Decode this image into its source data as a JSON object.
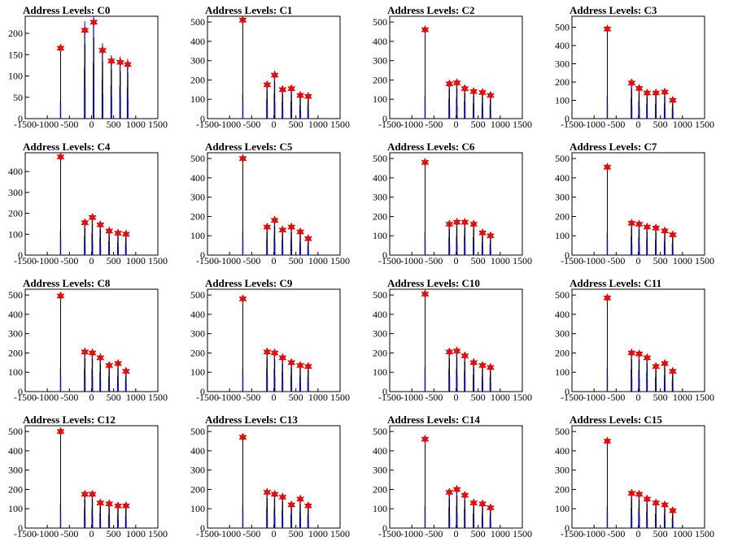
{
  "chart_data": {
    "type": "histogram_grid",
    "x_ticks": [
      -1500,
      -1000,
      -500,
      0,
      500,
      1000,
      1500
    ],
    "x_tick_labels": [
      "-1500",
      "-1000",
      "-500",
      "0",
      "500",
      "1000",
      "1500"
    ],
    "xlim": [
      -1500,
      1500
    ],
    "panels": [
      {
        "title": "Address Levels: C0",
        "ylim": [
          0,
          240
        ],
        "y_ticks": [
          0,
          50,
          100,
          150,
          200
        ],
        "y_tick_labels": [
          "0",
          "50",
          "100",
          "150",
          "200"
        ],
        "peaks": [
          {
            "x": -700,
            "y": 165
          },
          {
            "x": -150,
            "y": 207
          },
          {
            "x": 50,
            "y": 226
          },
          {
            "x": 250,
            "y": 160
          },
          {
            "x": 450,
            "y": 135
          },
          {
            "x": 650,
            "y": 132
          },
          {
            "x": 820,
            "y": 127
          }
        ]
      },
      {
        "title": "Address Levels: C1",
        "ylim": [
          0,
          530
        ],
        "y_ticks": [
          0,
          100,
          200,
          300,
          400,
          500
        ],
        "y_tick_labels": [
          "0",
          "100",
          "200",
          "300",
          "400",
          "500"
        ],
        "peaks": [
          {
            "x": -700,
            "y": 510
          },
          {
            "x": -150,
            "y": 175
          },
          {
            "x": 20,
            "y": 225
          },
          {
            "x": 200,
            "y": 150
          },
          {
            "x": 400,
            "y": 155
          },
          {
            "x": 600,
            "y": 120
          },
          {
            "x": 780,
            "y": 115
          }
        ]
      },
      {
        "title": "Address Levels: C2",
        "ylim": [
          0,
          530
        ],
        "y_ticks": [
          0,
          100,
          200,
          300,
          400,
          500
        ],
        "y_tick_labels": [
          "0",
          "100",
          "200",
          "300",
          "400",
          "500"
        ],
        "peaks": [
          {
            "x": -700,
            "y": 460
          },
          {
            "x": -150,
            "y": 180
          },
          {
            "x": 20,
            "y": 185
          },
          {
            "x": 200,
            "y": 155
          },
          {
            "x": 400,
            "y": 140
          },
          {
            "x": 600,
            "y": 135
          },
          {
            "x": 780,
            "y": 120
          }
        ]
      },
      {
        "title": "Address Levels: C3",
        "ylim": [
          0,
          560
        ],
        "y_ticks": [
          0,
          100,
          200,
          300,
          400,
          500
        ],
        "y_tick_labels": [
          "0",
          "100",
          "200",
          "300",
          "400",
          "500"
        ],
        "peaks": [
          {
            "x": -700,
            "y": 490
          },
          {
            "x": -150,
            "y": 195
          },
          {
            "x": 20,
            "y": 165
          },
          {
            "x": 200,
            "y": 140
          },
          {
            "x": 400,
            "y": 140
          },
          {
            "x": 600,
            "y": 145
          },
          {
            "x": 780,
            "y": 100
          }
        ]
      },
      {
        "title": "Address Levels: C4",
        "ylim": [
          0,
          490
        ],
        "y_ticks": [
          0,
          100,
          200,
          300,
          400
        ],
        "y_tick_labels": [
          "0",
          "100",
          "200",
          "300",
          "400"
        ],
        "peaks": [
          {
            "x": -700,
            "y": 470
          },
          {
            "x": -150,
            "y": 155
          },
          {
            "x": 20,
            "y": 180
          },
          {
            "x": 200,
            "y": 145
          },
          {
            "x": 400,
            "y": 115
          },
          {
            "x": 600,
            "y": 105
          },
          {
            "x": 780,
            "y": 100
          }
        ]
      },
      {
        "title": "Address Levels: C5",
        "ylim": [
          0,
          530
        ],
        "y_ticks": [
          0,
          100,
          200,
          300,
          400,
          500
        ],
        "y_tick_labels": [
          "0",
          "100",
          "200",
          "300",
          "400",
          "500"
        ],
        "peaks": [
          {
            "x": -700,
            "y": 500
          },
          {
            "x": -150,
            "y": 145
          },
          {
            "x": 20,
            "y": 180
          },
          {
            "x": 200,
            "y": 130
          },
          {
            "x": 400,
            "y": 145
          },
          {
            "x": 600,
            "y": 120
          },
          {
            "x": 780,
            "y": 85
          }
        ]
      },
      {
        "title": "Address Levels: C6",
        "ylim": [
          0,
          530
        ],
        "y_ticks": [
          0,
          100,
          200,
          300,
          400,
          500
        ],
        "y_tick_labels": [
          "0",
          "100",
          "200",
          "300",
          "400",
          "500"
        ],
        "peaks": [
          {
            "x": -700,
            "y": 480
          },
          {
            "x": -150,
            "y": 160
          },
          {
            "x": 20,
            "y": 170
          },
          {
            "x": 200,
            "y": 170
          },
          {
            "x": 400,
            "y": 160
          },
          {
            "x": 600,
            "y": 115
          },
          {
            "x": 780,
            "y": 100
          }
        ]
      },
      {
        "title": "Address Levels: C7",
        "ylim": [
          0,
          530
        ],
        "y_ticks": [
          0,
          100,
          200,
          300,
          400,
          500
        ],
        "y_tick_labels": [
          "0",
          "100",
          "200",
          "300",
          "400",
          "500"
        ],
        "peaks": [
          {
            "x": -700,
            "y": 455
          },
          {
            "x": -150,
            "y": 165
          },
          {
            "x": 20,
            "y": 160
          },
          {
            "x": 200,
            "y": 145
          },
          {
            "x": 400,
            "y": 140
          },
          {
            "x": 600,
            "y": 125
          },
          {
            "x": 780,
            "y": 105
          }
        ]
      },
      {
        "title": "Address Levels: C8",
        "ylim": [
          0,
          530
        ],
        "y_ticks": [
          0,
          100,
          200,
          300,
          400,
          500
        ],
        "y_tick_labels": [
          "0",
          "100",
          "200",
          "300",
          "400",
          "500"
        ],
        "peaks": [
          {
            "x": -700,
            "y": 495
          },
          {
            "x": -150,
            "y": 205
          },
          {
            "x": 20,
            "y": 200
          },
          {
            "x": 200,
            "y": 175
          },
          {
            "x": 400,
            "y": 135
          },
          {
            "x": 600,
            "y": 145
          },
          {
            "x": 780,
            "y": 105
          }
        ]
      },
      {
        "title": "Address Levels: C9",
        "ylim": [
          0,
          530
        ],
        "y_ticks": [
          0,
          100,
          200,
          300,
          400,
          500
        ],
        "y_tick_labels": [
          "0",
          "100",
          "200",
          "300",
          "400",
          "500"
        ],
        "peaks": [
          {
            "x": -700,
            "y": 480
          },
          {
            "x": -150,
            "y": 205
          },
          {
            "x": 20,
            "y": 200
          },
          {
            "x": 200,
            "y": 175
          },
          {
            "x": 400,
            "y": 150
          },
          {
            "x": 600,
            "y": 135
          },
          {
            "x": 780,
            "y": 130
          }
        ]
      },
      {
        "title": "Address Levels: C10",
        "ylim": [
          0,
          530
        ],
        "y_ticks": [
          0,
          100,
          200,
          300,
          400,
          500
        ],
        "y_tick_labels": [
          "0",
          "100",
          "200",
          "300",
          "400",
          "500"
        ],
        "peaks": [
          {
            "x": -700,
            "y": 505
          },
          {
            "x": -150,
            "y": 205
          },
          {
            "x": 20,
            "y": 210
          },
          {
            "x": 200,
            "y": 185
          },
          {
            "x": 400,
            "y": 150
          },
          {
            "x": 600,
            "y": 135
          },
          {
            "x": 780,
            "y": 125
          }
        ]
      },
      {
        "title": "Address Levels: C11",
        "ylim": [
          0,
          530
        ],
        "y_ticks": [
          0,
          100,
          200,
          300,
          400,
          500
        ],
        "y_tick_labels": [
          "0",
          "100",
          "200",
          "300",
          "400",
          "500"
        ],
        "peaks": [
          {
            "x": -700,
            "y": 485
          },
          {
            "x": -150,
            "y": 200
          },
          {
            "x": 20,
            "y": 195
          },
          {
            "x": 200,
            "y": 175
          },
          {
            "x": 400,
            "y": 130
          },
          {
            "x": 600,
            "y": 145
          },
          {
            "x": 780,
            "y": 105
          }
        ]
      },
      {
        "title": "Address Levels: C12",
        "ylim": [
          0,
          530
        ],
        "y_ticks": [
          0,
          100,
          200,
          300,
          400,
          500
        ],
        "y_tick_labels": [
          "0",
          "100",
          "200",
          "300",
          "400",
          "500"
        ],
        "peaks": [
          {
            "x": -700,
            "y": 500
          },
          {
            "x": -150,
            "y": 175
          },
          {
            "x": 20,
            "y": 175
          },
          {
            "x": 200,
            "y": 130
          },
          {
            "x": 400,
            "y": 125
          },
          {
            "x": 600,
            "y": 115
          },
          {
            "x": 780,
            "y": 115
          }
        ]
      },
      {
        "title": "Address Levels: C13",
        "ylim": [
          0,
          530
        ],
        "y_ticks": [
          0,
          100,
          200,
          300,
          400,
          500
        ],
        "y_tick_labels": [
          "0",
          "100",
          "200",
          "300",
          "400",
          "500"
        ],
        "peaks": [
          {
            "x": -700,
            "y": 470
          },
          {
            "x": -150,
            "y": 185
          },
          {
            "x": 20,
            "y": 175
          },
          {
            "x": 200,
            "y": 160
          },
          {
            "x": 400,
            "y": 120
          },
          {
            "x": 600,
            "y": 150
          },
          {
            "x": 780,
            "y": 115
          }
        ]
      },
      {
        "title": "Address Levels: C14",
        "ylim": [
          0,
          530
        ],
        "y_ticks": [
          0,
          100,
          200,
          300,
          400,
          500
        ],
        "y_tick_labels": [
          "0",
          "100",
          "200",
          "300",
          "400",
          "500"
        ],
        "peaks": [
          {
            "x": -700,
            "y": 460
          },
          {
            "x": -150,
            "y": 185
          },
          {
            "x": 20,
            "y": 200
          },
          {
            "x": 200,
            "y": 170
          },
          {
            "x": 400,
            "y": 130
          },
          {
            "x": 600,
            "y": 125
          },
          {
            "x": 780,
            "y": 105
          }
        ]
      },
      {
        "title": "Address Levels: C15",
        "ylim": [
          0,
          530
        ],
        "y_ticks": [
          0,
          100,
          200,
          300,
          400,
          500
        ],
        "y_tick_labels": [
          "0",
          "100",
          "200",
          "300",
          "400",
          "500"
        ],
        "peaks": [
          {
            "x": -700,
            "y": 450
          },
          {
            "x": -150,
            "y": 180
          },
          {
            "x": 20,
            "y": 175
          },
          {
            "x": 200,
            "y": 150
          },
          {
            "x": 400,
            "y": 130
          },
          {
            "x": 600,
            "y": 120
          },
          {
            "x": 780,
            "y": 90
          }
        ]
      }
    ],
    "colors": {
      "histogram": "#0000ff",
      "histogram_shadow": "#000000",
      "marker": "#ff0000",
      "axis": "#000000"
    },
    "marker": "star"
  }
}
